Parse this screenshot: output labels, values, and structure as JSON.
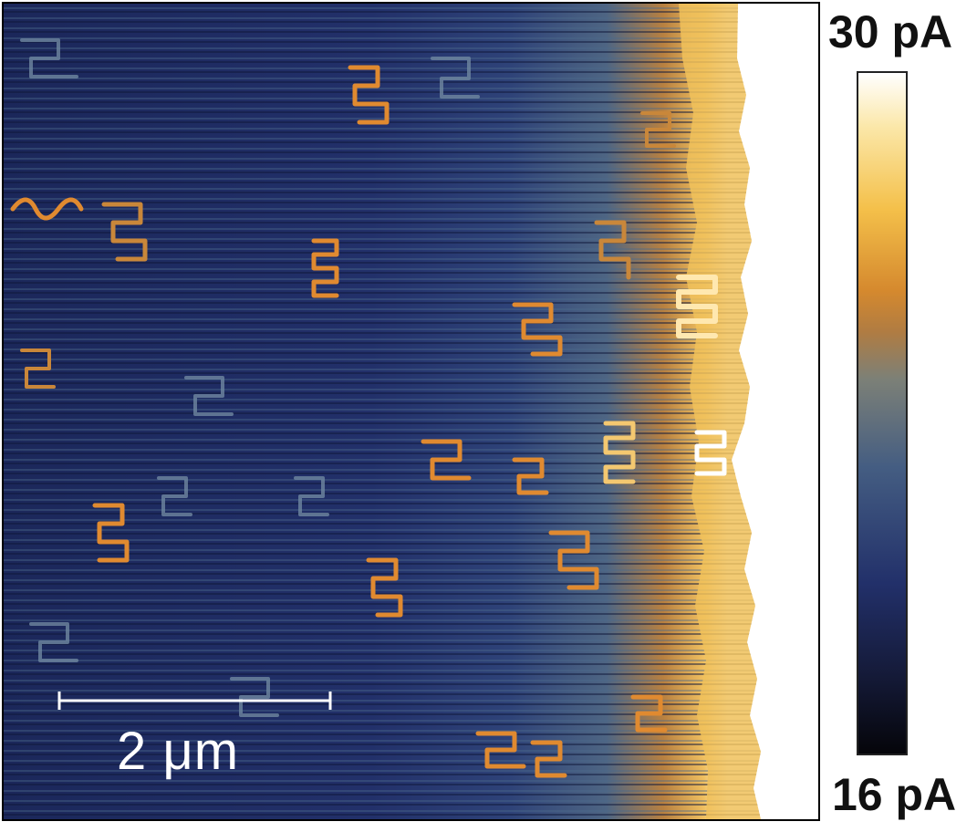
{
  "image": {
    "scale_bar_label": "2 μm",
    "colorbar_max_label": "30 pA",
    "colorbar_min_label": "16 pA",
    "colormap": [
      "#0a0a12",
      "#1f2d66",
      "#3d5685",
      "#6f7f86",
      "#c97f2e",
      "#f2c04a",
      "#ffffff"
    ]
  }
}
